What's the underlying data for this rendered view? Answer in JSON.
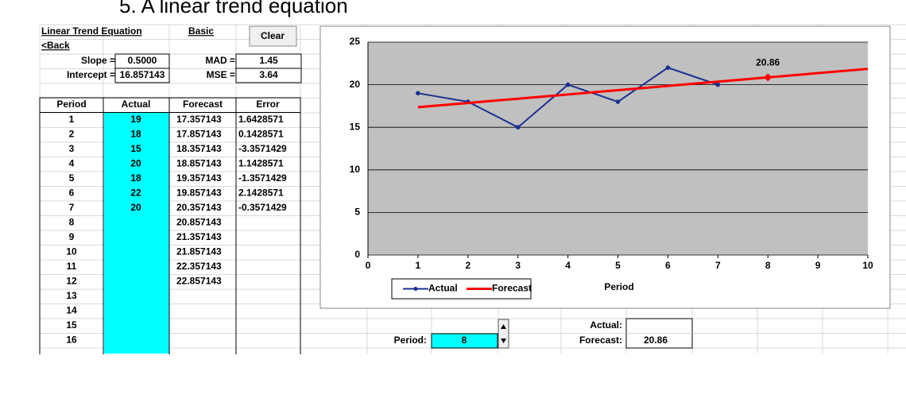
{
  "heading": "5.   A linear trend equation",
  "sheet": {
    "links": {
      "title": "Linear Trend Equation",
      "back": "<Back",
      "basic": "Basic"
    },
    "clear_button": "Clear",
    "params": [
      {
        "label": "Slope =",
        "value": "0.5000"
      },
      {
        "label": "Intercept =",
        "value": "16.857143"
      }
    ],
    "errors": [
      {
        "label": "MAD =",
        "value": "1.45"
      },
      {
        "label": "MSE =",
        "value": "3.64"
      }
    ],
    "table": {
      "columns": [
        "Period",
        "Actual",
        "Forecast",
        "Error"
      ],
      "period": [
        1,
        2,
        3,
        4,
        5,
        6,
        7,
        8,
        9,
        10,
        11,
        12,
        13,
        14,
        15,
        16
      ],
      "actual": [
        19,
        18,
        15,
        20,
        18,
        22,
        20
      ],
      "forecast": [
        "17.357143",
        "17.857143",
        "18.357143",
        "18.857143",
        "19.357143",
        "19.857143",
        "20.357143",
        "20.857143",
        "21.357143",
        "21.857143",
        "22.357143",
        "22.857143"
      ],
      "error": [
        "1.6428571",
        "0.1428571",
        "-3.3571429",
        "1.1428571",
        "-1.3571429",
        "2.1428571",
        "-0.3571429"
      ]
    },
    "selector": {
      "label": "Period:",
      "value": "8"
    },
    "result": {
      "actual_label": "Actual:",
      "forecast_label": "Forecast:",
      "forecast_value": "20.86"
    }
  },
  "chart_data": {
    "type": "line",
    "x_label": "Period",
    "x": [
      1,
      2,
      3,
      4,
      5,
      6,
      7,
      8,
      9,
      10
    ],
    "series": [
      {
        "name": "Actual",
        "color": "#1c2f8f",
        "values": [
          19,
          18,
          15,
          20,
          18,
          22,
          20,
          null,
          null,
          null
        ]
      },
      {
        "name": "Forecast",
        "color": "#ff0000",
        "values": [
          17.357143,
          17.857143,
          18.357143,
          18.857143,
          19.357143,
          19.857143,
          20.357143,
          20.857143,
          21.357143,
          21.857143
        ]
      }
    ],
    "highlight": {
      "x": 8,
      "value": 20.86,
      "color": "#ff0000"
    },
    "xlim": [
      0,
      10
    ],
    "xticks": [
      0,
      1,
      2,
      3,
      4,
      5,
      6,
      7,
      8,
      9,
      10
    ],
    "ylim": [
      0,
      25
    ],
    "yticks": [
      0,
      5,
      10,
      15,
      20,
      25
    ],
    "grid": true,
    "legend": "bottom-left"
  }
}
